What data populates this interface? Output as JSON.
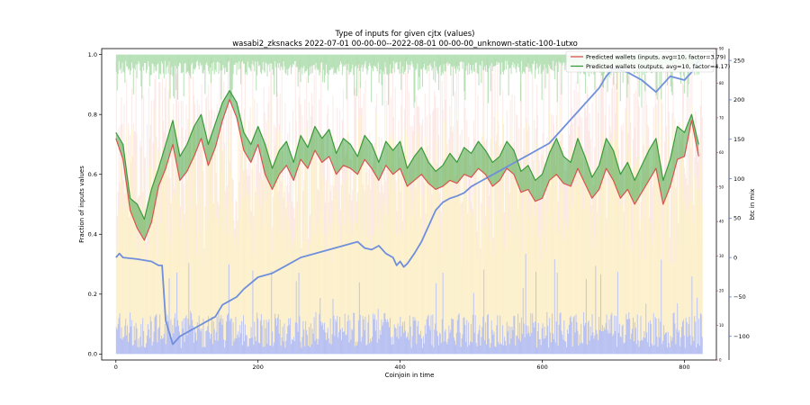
{
  "chart_data": {
    "type": "line",
    "title": "Type of inputs for given cjtx (values)",
    "subtitle": "wasabi2_zksnacks 2022-07-01 00-00-00--2022-08-01 00-00-00_unknown-static-100-1utxo",
    "xlabel": "Coinjoin in time",
    "ylabel": "Fraction of inputs values",
    "y2label": "btc in mix",
    "xlim": [
      -20,
      845
    ],
    "ylim": [
      -0.02,
      1.02
    ],
    "y2lim": [
      -130,
      265
    ],
    "y3lim": [
      0,
      90
    ],
    "x_ticks": [
      0,
      200,
      400,
      600,
      800
    ],
    "y_ticks": [
      0.0,
      0.2,
      0.4,
      0.6,
      0.8,
      1.0
    ],
    "y2_ticks": [
      -100,
      -50,
      0,
      50,
      100,
      150,
      200,
      250
    ],
    "y3_ticks": [
      0,
      10,
      20,
      30,
      40,
      50,
      60,
      70,
      80,
      90
    ],
    "legend_position": "top-right",
    "colors": {
      "inputs": "#d9534f",
      "outputs": "#3a9a3a",
      "btc": "#6f8fdc",
      "btc_axis": "#4a72c8",
      "wallets_axis": "#c83a3a",
      "fill": "#49a849"
    },
    "series": [
      {
        "name": "Predicted wallets (inputs, avg=10, factor=3.79)",
        "x": [
          0,
          10,
          20,
          30,
          40,
          50,
          60,
          70,
          80,
          90,
          100,
          110,
          120,
          130,
          140,
          150,
          160,
          170,
          180,
          190,
          200,
          210,
          220,
          230,
          240,
          250,
          260,
          270,
          280,
          290,
          300,
          310,
          320,
          330,
          340,
          350,
          360,
          370,
          380,
          390,
          400,
          410,
          420,
          430,
          440,
          450,
          460,
          470,
          480,
          490,
          500,
          510,
          520,
          530,
          540,
          550,
          560,
          570,
          580,
          590,
          600,
          610,
          620,
          630,
          640,
          650,
          660,
          670,
          680,
          690,
          700,
          710,
          720,
          730,
          740,
          750,
          760,
          770,
          780,
          790,
          800,
          810,
          820
        ],
        "values": [
          0.72,
          0.65,
          0.48,
          0.42,
          0.38,
          0.44,
          0.56,
          0.62,
          0.7,
          0.58,
          0.61,
          0.66,
          0.72,
          0.63,
          0.69,
          0.78,
          0.85,
          0.79,
          0.68,
          0.64,
          0.7,
          0.6,
          0.55,
          0.6,
          0.63,
          0.58,
          0.65,
          0.62,
          0.68,
          0.64,
          0.66,
          0.6,
          0.63,
          0.62,
          0.6,
          0.65,
          0.62,
          0.58,
          0.63,
          0.6,
          0.62,
          0.56,
          0.58,
          0.6,
          0.57,
          0.55,
          0.56,
          0.58,
          0.57,
          0.6,
          0.59,
          0.62,
          0.6,
          0.56,
          0.58,
          0.62,
          0.6,
          0.54,
          0.55,
          0.51,
          0.52,
          0.58,
          0.6,
          0.57,
          0.56,
          0.62,
          0.57,
          0.52,
          0.55,
          0.62,
          0.58,
          0.52,
          0.55,
          0.5,
          0.54,
          0.58,
          0.62,
          0.5,
          0.56,
          0.65,
          0.66,
          0.78,
          0.66
        ]
      },
      {
        "name": "Predicted wallets (outputs, avg=10, factor=4.17)",
        "x": [
          0,
          10,
          20,
          30,
          40,
          50,
          60,
          70,
          80,
          90,
          100,
          110,
          120,
          130,
          140,
          150,
          160,
          170,
          180,
          190,
          200,
          210,
          220,
          230,
          240,
          250,
          260,
          270,
          280,
          290,
          300,
          310,
          320,
          330,
          340,
          350,
          360,
          370,
          380,
          390,
          400,
          410,
          420,
          430,
          440,
          450,
          460,
          470,
          480,
          490,
          500,
          510,
          520,
          530,
          540,
          550,
          560,
          570,
          580,
          590,
          600,
          610,
          620,
          630,
          640,
          650,
          660,
          670,
          680,
          690,
          700,
          710,
          720,
          730,
          740,
          750,
          760,
          770,
          780,
          790,
          800,
          810,
          820
        ],
        "values": [
          0.74,
          0.7,
          0.52,
          0.5,
          0.45,
          0.55,
          0.62,
          0.7,
          0.78,
          0.66,
          0.7,
          0.76,
          0.8,
          0.7,
          0.77,
          0.84,
          0.88,
          0.84,
          0.74,
          0.7,
          0.76,
          0.7,
          0.62,
          0.68,
          0.71,
          0.64,
          0.73,
          0.69,
          0.76,
          0.72,
          0.75,
          0.67,
          0.72,
          0.7,
          0.66,
          0.73,
          0.7,
          0.64,
          0.71,
          0.68,
          0.71,
          0.62,
          0.66,
          0.69,
          0.64,
          0.61,
          0.63,
          0.67,
          0.64,
          0.69,
          0.67,
          0.71,
          0.68,
          0.64,
          0.66,
          0.71,
          0.68,
          0.61,
          0.63,
          0.58,
          0.6,
          0.67,
          0.72,
          0.66,
          0.64,
          0.72,
          0.66,
          0.59,
          0.63,
          0.72,
          0.68,
          0.6,
          0.64,
          0.58,
          0.63,
          0.68,
          0.72,
          0.58,
          0.65,
          0.76,
          0.74,
          0.8,
          0.7
        ]
      },
      {
        "name": "btc in mix",
        "x": [
          0,
          5,
          10,
          30,
          50,
          60,
          65,
          70,
          80,
          90,
          100,
          110,
          120,
          130,
          140,
          150,
          160,
          170,
          180,
          200,
          220,
          240,
          260,
          280,
          300,
          320,
          340,
          350,
          360,
          370,
          380,
          390,
          395,
          400,
          405,
          410,
          420,
          430,
          440,
          450,
          460,
          470,
          480,
          490,
          500,
          510,
          520,
          530,
          540,
          550,
          560,
          570,
          580,
          590,
          600,
          610,
          620,
          630,
          640,
          650,
          660,
          670,
          680,
          690,
          700,
          720,
          740,
          760,
          780,
          800,
          810,
          820
        ],
        "values": [
          0,
          5,
          0,
          -2,
          -5,
          -10,
          -10,
          -80,
          -110,
          -100,
          -95,
          -90,
          -85,
          -80,
          -75,
          -60,
          -55,
          -50,
          -40,
          -25,
          -20,
          -10,
          0,
          5,
          10,
          15,
          20,
          12,
          10,
          15,
          5,
          0,
          -10,
          -5,
          -12,
          -8,
          5,
          20,
          40,
          60,
          70,
          75,
          78,
          82,
          90,
          95,
          100,
          105,
          110,
          115,
          120,
          125,
          130,
          135,
          140,
          145,
          155,
          165,
          175,
          185,
          195,
          205,
          215,
          230,
          240,
          235,
          225,
          210,
          230,
          225,
          235,
          250
        ]
      }
    ]
  }
}
